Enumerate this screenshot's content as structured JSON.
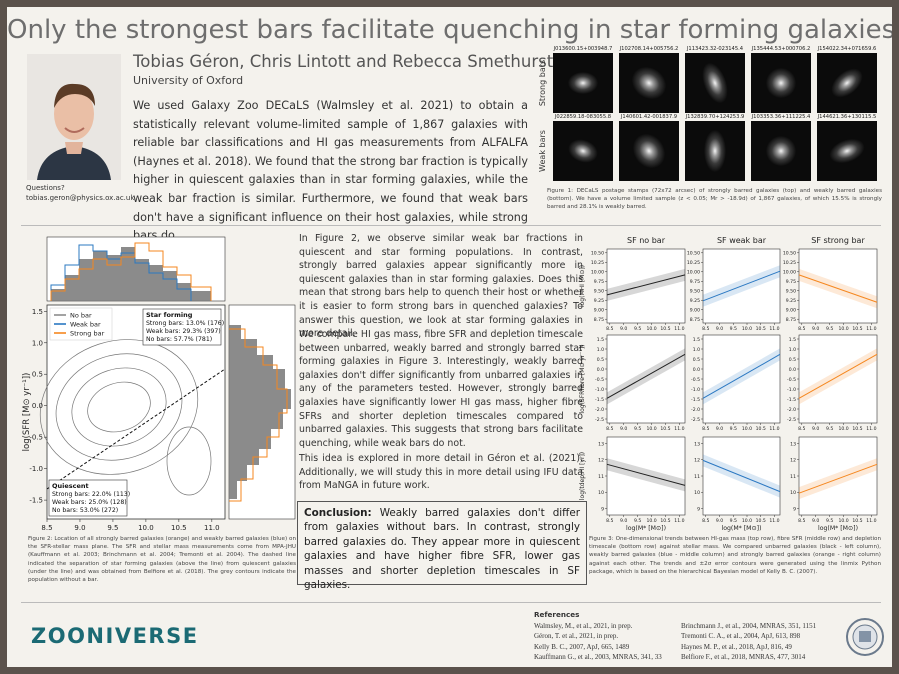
{
  "title": "Only the strongest bars facilitate quenching in star forming galaxies",
  "authors": "Tobias Géron, Chris Lintott and Rebecca Smethurst",
  "affiliation": "University of Oxford",
  "contact": {
    "label": "Questions?",
    "email": "tobias.geron@physics.ox.ac.uk"
  },
  "abstract": "We used Galaxy Zoo DECaLS (Walmsley et al. 2021) to obtain a statistically relevant volume-limited sample of 1,867 galaxies with reliable bar classifications and HI gas measurements from ALFALFA (Haynes et al. 2018). We found that the strong bar fraction is typically higher in quiescent galaxies than in star forming galaxies, while the weak bar fraction is similar. Furthermore, we found that weak bars don't have a significant influence on their host galaxies, while strong bars do.",
  "figure1": {
    "rows": [
      {
        "label": "Strong bars",
        "stamps": [
          "J013600.15+003948.7",
          "J102708.14+005756.2",
          "J113423.32-023145.4",
          "J135444.53+000706.2",
          "J154022.34+071659.6"
        ]
      },
      {
        "label": "Weak bars",
        "stamps": [
          "J022859.18-083055.8",
          "J140601.42-001837.9",
          "J132839.70+124253.9",
          "J103353.36+111225.4",
          "J144621.36+130115.5"
        ]
      }
    ],
    "caption": "Figure 1: DECaLS postage stamps (72x72 arcsec) of strongly barred galaxies (top) and weakly barred galaxies (bottom). We have a volume limited sample (z < 0.05; Mr > -18.9d) of 1,867 galaxies, of which 15.5% is strongly barred and 28.1% is weakly barred."
  },
  "figure2": {
    "xlabel": "log(M* [M⊙])",
    "ylabel": "log(SFR [M⊙ yr⁻¹])",
    "xlim": [
      8.5,
      11.2
    ],
    "ylim": [
      -1.8,
      1.6
    ],
    "xticks": [
      8.5,
      {
        "value": 9.0,
        "label": "9.0"
      },
      9.5,
      {
        "value": 10.0,
        "label": "10.0"
      },
      10.5,
      {
        "value": 11.0,
        "label": "11.0"
      }
    ],
    "yticks": [
      1.5,
      {
        "value": 1.0,
        "label": "1.0"
      },
      0.5,
      {
        "value": 0.0,
        "label": "0.0"
      },
      -0.5,
      {
        "value": -1.0,
        "label": "-1.0"
      },
      -1.5
    ],
    "legend": [
      {
        "name": "No bar",
        "color": "#8c8c8c"
      },
      {
        "name": "Weak bar",
        "color": "#2b78c2"
      },
      {
        "name": "Strong bar",
        "color": "#f5871f"
      }
    ],
    "star_forming": {
      "title": "Star forming",
      "lines": [
        "Strong bars: 13.0% (176)",
        "Weak bars: 29.3% (397)",
        "No bars: 57.7% (781)"
      ]
    },
    "quiescent": {
      "title": "Quiescent",
      "lines": [
        "Strong bars: 22.0% (113)",
        "Weak bars: 25.0% (128)",
        "No bars: 53.0% (272)"
      ]
    },
    "caption": "Figure 2: Location of all strongly barred galaxies (orange) and weakly barred galaxies (blue) on the SFR-stellar mass plane. The SFR and stellar mass measurements come from MPA-JHU (Kauffmann et al. 2003; Brinchmann et al. 2004; Tremonti et al. 2004). The dashed line indicated the separation of star forming galaxies (above the line) from quiescent galaxies (under the line) and was obtained from Belfiore et al. (2018). The grey contours indicate the population without a bar."
  },
  "text": {
    "paragraphs": [
      "In Figure 2, we observe similar weak bar fractions in quiescent and star forming populations. In contrast, strongly barred galaxies appear significantly more in quiescent galaxies than in star forming galaxies. Does this mean that strong bars help to quench their host or whether it is easier to form strong bars in quenched galaxies? To answer this question, we look at star forming galaxies in more detail.",
      "We compare HI gas mass, fibre SFR and depletion timescale between unbarred, weakly barred and strongly barred star forming galaxies in Figure 3. Interestingly, weakly barred galaxies don't differ significantly from unbarred galaxies in any of the parameters tested. However, strongly barred galaxies have significantly lower HI gas mass, higher fibre SFRs and shorter depletion timescales compared to unbarred galaxies. This suggests that strong bars facilitate quenching, while weak bars do not.",
      "This idea is explored in more detail in Géron et al. (2021). Additionally, we will study this in more detail using IFU data from MaNGA in future work."
    ],
    "conclusion": {
      "label": "Conclusion:",
      "body": "Weakly barred galaxies don't differ from galaxies without bars. In contrast, strongly barred galaxies do. They appear more in quiescent galaxies and have higher fibre SFR, lower gas masses and shorter depletion timescales in SF galaxies."
    }
  },
  "figure3": {
    "panels": [
      {
        "title": "SF no bar",
        "color": "#222222"
      },
      {
        "title": "SF weak bar",
        "color": "#2b78c2"
      },
      {
        "title": "SF strong bar",
        "color": "#f5871f"
      }
    ],
    "xlabel": "log(M* [M⊙])",
    "xlim": [
      8.4,
      11.2
    ],
    "xticks": [
      8.5,
      {
        "value": 9.0,
        "label": "9.0"
      },
      9.5,
      {
        "value": 10.0,
        "label": "10.0"
      },
      10.5,
      {
        "value": 11.0,
        "label": "11.0"
      }
    ],
    "rows": [
      {
        "ylabel": "log(MHI [M⊙])",
        "ylim": [
          8.65,
          10.6
        ],
        "yticks": [
          {
            "value": 8.75,
            "label": "8.75"
          },
          {
            "value": 9.0,
            "label": "9.00"
          },
          9.25,
          {
            "value": 9.5,
            "label": "9.50"
          },
          9.75,
          {
            "value": 10.0,
            "label": "10.00"
          },
          10.25,
          {
            "value": 10.5,
            "label": "10.50"
          }
        ]
      },
      {
        "ylabel": "log(SFRfibre [M⊙ yr⁻¹])",
        "ylim": [
          -2.7,
          1.7
        ],
        "yticks": [
          -2.5,
          {
            "value": -2.0,
            "label": "-2.0"
          },
          -1.5,
          {
            "value": -1.0,
            "label": "-1.0"
          },
          -0.5,
          {
            "value": 0.0,
            "label": "0.0"
          },
          0.5,
          {
            "value": 1.0,
            "label": "1.0"
          },
          1.5
        ]
      },
      {
        "ylabel": "log(tdep,HI [yr])",
        "ylim": [
          8.6,
          13.4
        ],
        "yticks": [
          9,
          10,
          11,
          12,
          13
        ]
      }
    ],
    "caption": "Figure 3: One-dimensional trends between HI-gas mass (top row), fibre SFR (middle row) and depletion timescale (bottom row) against stellar mass. We compared unbarred galaxies (black - left column), weakly barred galaxies (blue - middle column) and strongly barred galaxies (orange - right column) against each other. The trends and ±2σ error contours were generated using the linmix Python package, which is based on the hierarchical Bayesian model of Kelly B. C. (2007)."
  },
  "footer": {
    "logo": "ZOONIVERSE",
    "references_title": "References",
    "references_left": [
      "Walmsley, M., et al., 2021, in prep.",
      "Géron, T. et al., 2021, in prep.",
      "Kelly B. C., 2007, ApJ, 665, 1489",
      "Kauffmann G., et al., 2003, MNRAS, 341, 33"
    ],
    "references_right": [
      "Brinchmann J., et al., 2004, MNRAS, 351, 1151",
      "Tremonti C. A., et al., 2004, ApJ, 613, 898",
      "Haynes M. P., et al., 2018, ApJ, 816, 49",
      "Belfiore F., et al., 2018, MNRAS, 477, 3014"
    ]
  }
}
